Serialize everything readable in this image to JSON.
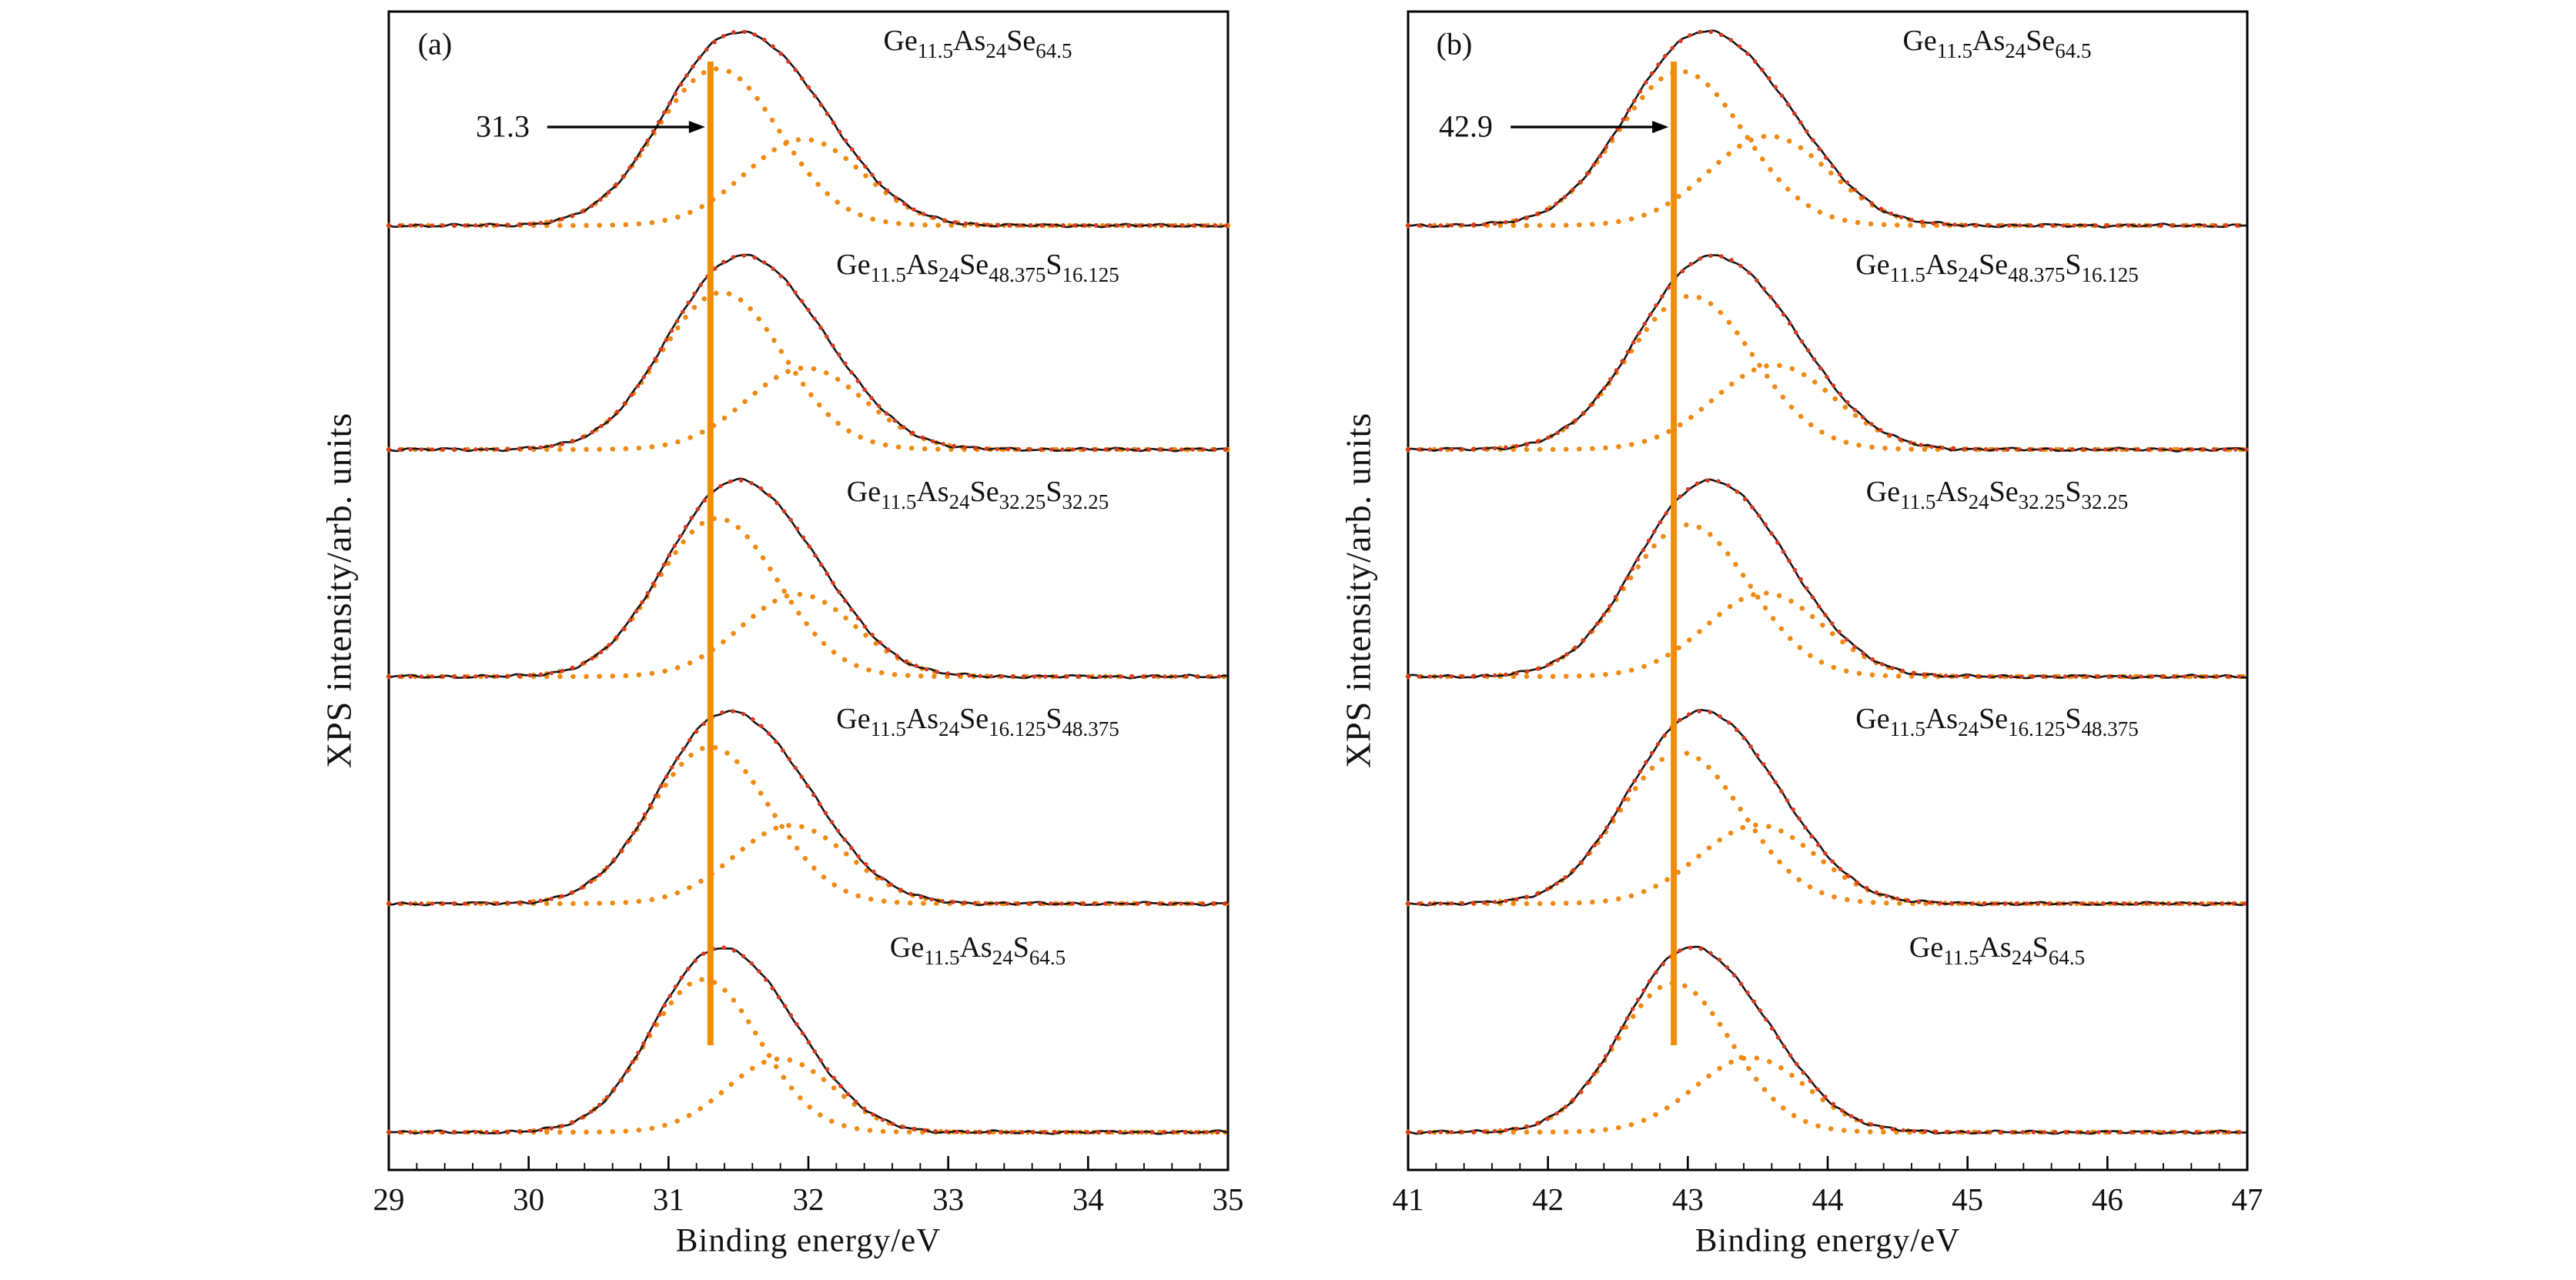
{
  "figure": {
    "ylabel": "XPS intensity/arb. units",
    "colors": {
      "experimental": "#141414",
      "fit": "#d63b22",
      "component": "#f08a12",
      "marker": "#ef8d08"
    }
  },
  "chart_data": [
    {
      "type": "line",
      "panel_label": "(a)",
      "xlabel": "Binding energy/eV",
      "ylabel": "XPS intensity/arb. units",
      "xlim": [
        29,
        35
      ],
      "xticks": [
        29,
        30,
        31,
        32,
        33,
        34,
        35
      ],
      "x_minor_step": 0.2,
      "y_axis": "arbitrary units, no ticks, stacked offset spectra",
      "marker_line": {
        "x": 31.3,
        "label": "31.3"
      },
      "curve_styles": {
        "experimental": "black solid line",
        "total_fit": "red dotted line",
        "components": "orange dotted Gaussian sub-peaks"
      },
      "series": [
        {
          "label": "Ge_11.5_As_24_Se_64.5",
          "components": [
            {
              "center": 31.35,
              "sigma": 0.44,
              "amp": 1.0
            },
            {
              "center": 31.97,
              "sigma": 0.42,
              "amp": 0.55
            }
          ]
        },
        {
          "label": "Ge_11.5_As_24_Se_48.375_S_16.125",
          "components": [
            {
              "center": 31.38,
              "sigma": 0.44,
              "amp": 1.0
            },
            {
              "center": 31.98,
              "sigma": 0.42,
              "amp": 0.52
            }
          ]
        },
        {
          "label": "Ge_11.5_As_24_Se_32.25_S_32.25",
          "components": [
            {
              "center": 31.35,
              "sigma": 0.43,
              "amp": 1.0
            },
            {
              "center": 31.93,
              "sigma": 0.41,
              "amp": 0.52
            }
          ]
        },
        {
          "label": "Ge_11.5_As_24_Se_16.125_S_48.375",
          "components": [
            {
              "center": 31.3,
              "sigma": 0.43,
              "amp": 1.0
            },
            {
              "center": 31.88,
              "sigma": 0.41,
              "amp": 0.5
            }
          ]
        },
        {
          "label": "Ge_11.5_As_24_S_64.5",
          "components": [
            {
              "center": 31.25,
              "sigma": 0.4,
              "amp": 1.0
            },
            {
              "center": 31.8,
              "sigma": 0.38,
              "amp": 0.48
            }
          ]
        }
      ]
    },
    {
      "type": "line",
      "panel_label": "(b)",
      "xlabel": "Binding energy/eV",
      "ylabel": "XPS intensity/arb. units",
      "xlim": [
        41,
        47
      ],
      "xticks": [
        41,
        42,
        43,
        44,
        45,
        46,
        47
      ],
      "x_minor_step": 0.2,
      "y_axis": "arbitrary units, no ticks, stacked offset spectra",
      "marker_line": {
        "x": 42.9,
        "label": "42.9"
      },
      "curve_styles": {
        "experimental": "black solid line",
        "total_fit": "red dotted line",
        "components": "orange dotted Gaussian sub-peaks"
      },
      "series": [
        {
          "label": "Ge_11.5_As_24_Se_64.5",
          "components": [
            {
              "center": 42.95,
              "sigma": 0.45,
              "amp": 1.0
            },
            {
              "center": 43.58,
              "sigma": 0.43,
              "amp": 0.58
            }
          ]
        },
        {
          "label": "Ge_11.5_As_24_Se_48.375_S_16.125",
          "components": [
            {
              "center": 43.02,
              "sigma": 0.45,
              "amp": 1.0
            },
            {
              "center": 43.62,
              "sigma": 0.43,
              "amp": 0.55
            }
          ]
        },
        {
          "label": "Ge_11.5_As_24_Se_32.25_S_32.25",
          "components": [
            {
              "center": 43.0,
              "sigma": 0.44,
              "amp": 1.0
            },
            {
              "center": 43.55,
              "sigma": 0.42,
              "amp": 0.55
            }
          ]
        },
        {
          "label": "Ge_11.5_As_24_Se_16.125_S_48.375",
          "components": [
            {
              "center": 42.95,
              "sigma": 0.44,
              "amp": 1.0
            },
            {
              "center": 43.5,
              "sigma": 0.42,
              "amp": 0.52
            }
          ]
        },
        {
          "label": "Ge_11.5_As_24_S_64.5",
          "components": [
            {
              "center": 42.9,
              "sigma": 0.41,
              "amp": 1.0
            },
            {
              "center": 43.45,
              "sigma": 0.4,
              "amp": 0.5
            }
          ]
        }
      ]
    }
  ]
}
